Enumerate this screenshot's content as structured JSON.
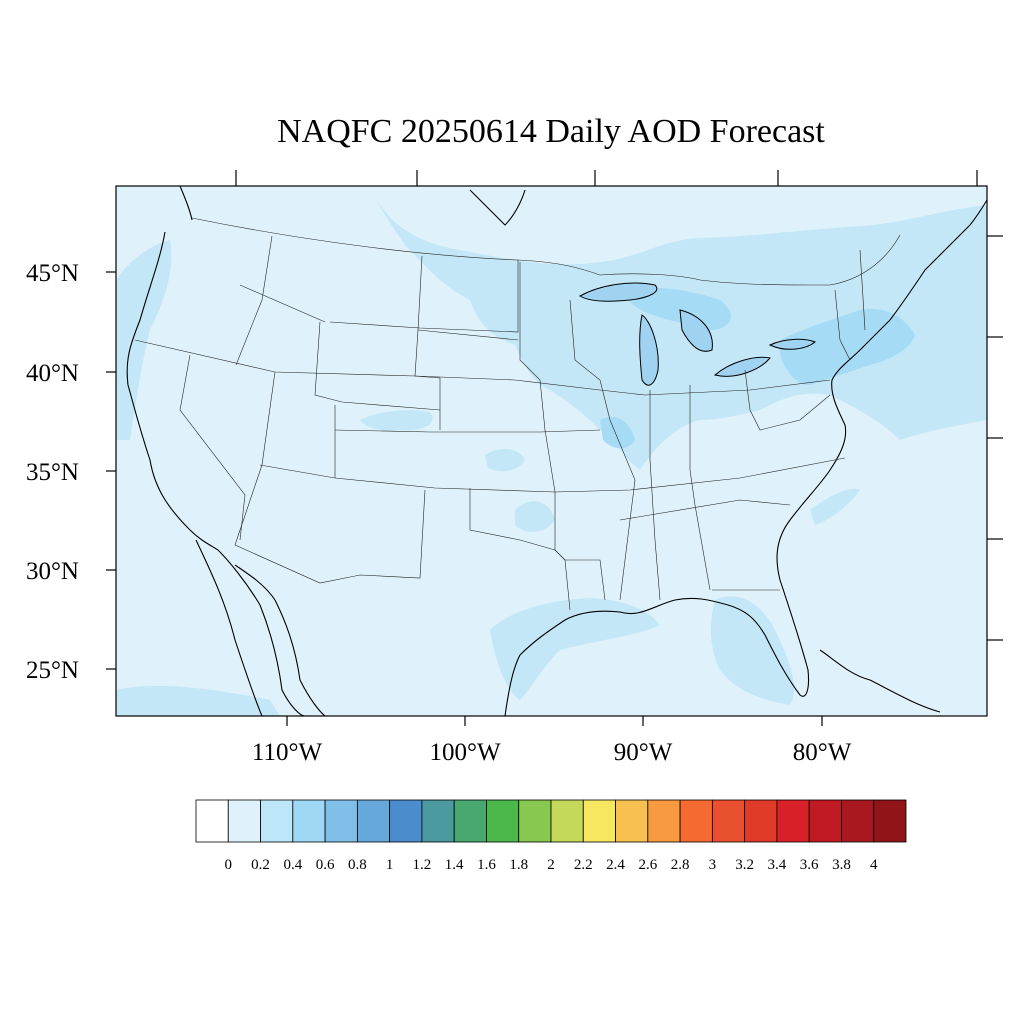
{
  "title": "NAQFC 20250614 Daily AOD Forecast",
  "map": {
    "projection": "lambert-like",
    "lat_labels": [
      "45°N",
      "40°N",
      "35°N",
      "30°N",
      "25°N"
    ],
    "lon_labels": [
      "110°W",
      "100°W",
      "90°W",
      "80°W"
    ],
    "background_color": "#dff2fb"
  },
  "colorbar": {
    "labels": [
      "0",
      "0.2",
      "0.4",
      "0.6",
      "0.8",
      "1",
      "1.2",
      "1.4",
      "1.6",
      "1.8",
      "2",
      "2.2",
      "2.4",
      "2.6",
      "2.8",
      "3",
      "3.2",
      "3.4",
      "3.6",
      "3.8",
      "4"
    ],
    "colors": [
      "#ffffff",
      "#dff2fb",
      "#bde6f8",
      "#9ed8f4",
      "#80c0e8",
      "#66a8dc",
      "#4a8ccc",
      "#4a9aa0",
      "#48a870",
      "#4ab84a",
      "#88c850",
      "#c4d85a",
      "#f6e660",
      "#f8c050",
      "#f89a40",
      "#f46a30",
      "#e85030",
      "#e03a28",
      "#d82028",
      "#c01a22",
      "#a81820",
      "#901418"
    ]
  }
}
